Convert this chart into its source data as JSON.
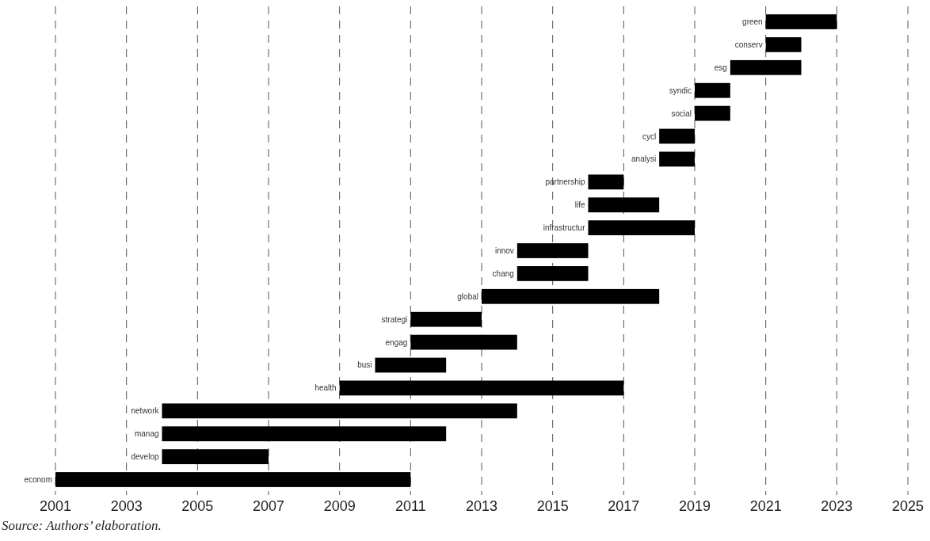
{
  "chart_data": {
    "type": "bar",
    "orientation": "horizontal",
    "categories": [
      "green",
      "conserv",
      "esg",
      "syndic",
      "social",
      "cycl",
      "analysi",
      "partnership",
      "life",
      "infrastructur",
      "innov",
      "chang",
      "global",
      "strategi",
      "engag",
      "busi",
      "health",
      "network",
      "manag",
      "develop",
      "econom"
    ],
    "base": [
      2021,
      2021,
      2020,
      2019,
      2019,
      2018,
      2018,
      2016,
      2016,
      2016,
      2014,
      2014,
      2013,
      2011,
      2011,
      2010,
      2009,
      2004,
      2004,
      2004,
      2001
    ],
    "values": [
      2,
      1,
      2,
      1,
      1,
      1,
      1,
      1,
      2,
      3,
      2,
      2,
      5,
      2,
      3,
      2,
      8,
      10,
      8,
      3,
      10
    ],
    "color": "#000000",
    "xlim": [
      2001,
      2025
    ],
    "xticks": [
      2001,
      2003,
      2005,
      2007,
      2009,
      2011,
      2013,
      2015,
      2017,
      2019,
      2021,
      2023,
      2025
    ],
    "grid": "x",
    "annotations": [
      "Source: Authors’ elaboration."
    ]
  }
}
